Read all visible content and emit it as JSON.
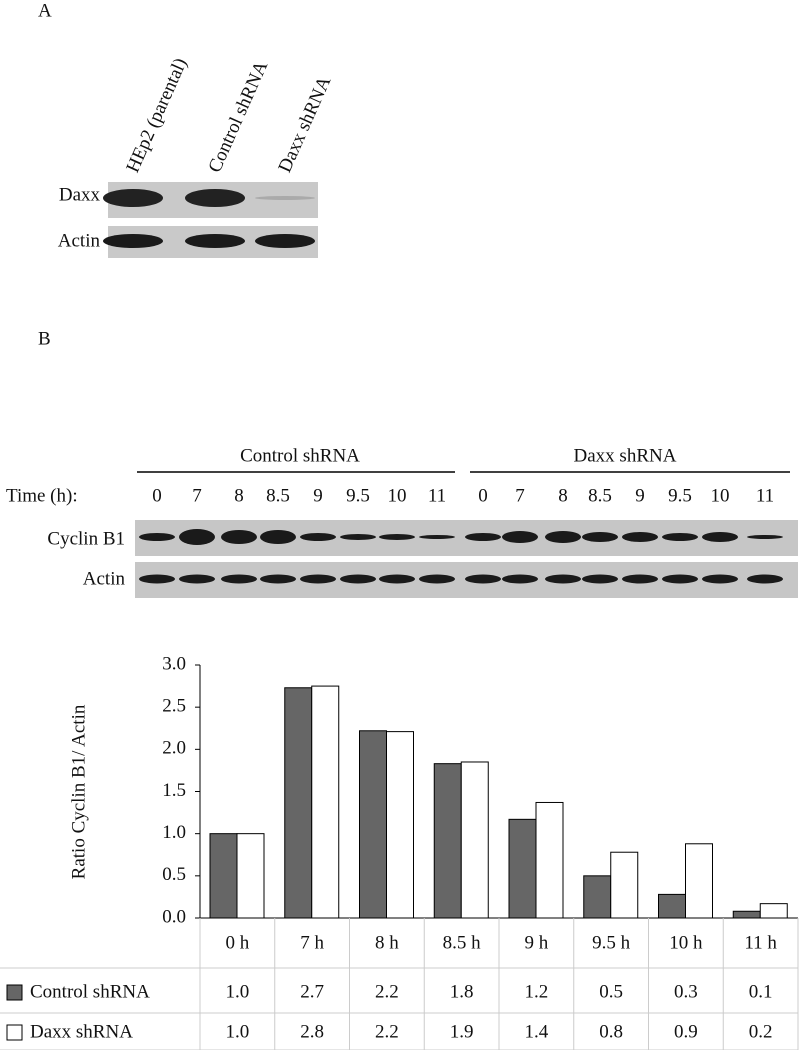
{
  "panel_a": {
    "label": "A",
    "lanes": [
      "HEp2 (parental)",
      "Control shRNA",
      "Daxx shRNA"
    ],
    "rows": [
      "Daxx",
      "Actin"
    ]
  },
  "panel_b": {
    "label": "B",
    "groups": [
      "Control shRNA",
      "Daxx shRNA"
    ],
    "time_label": "Time (h):",
    "times": [
      "0",
      "7",
      "8",
      "8.5",
      "9",
      "9.5",
      "10",
      "11"
    ],
    "rows": [
      "Cyclin B1",
      "Actin"
    ]
  },
  "chart_data": {
    "type": "bar",
    "y_label": "Ratio Cyclin B1/ Actin",
    "categories": [
      "0 h",
      "7 h",
      "8 h",
      "8.5 h",
      "9 h",
      "9.5 h",
      "10 h",
      "11 h"
    ],
    "series": [
      {
        "name": "Control shRNA",
        "color": "#666666",
        "values": [
          1.0,
          2.73,
          2.22,
          1.83,
          1.17,
          0.5,
          0.28,
          0.08
        ],
        "value_labels": [
          "1.0",
          "2.7",
          "2.2",
          "1.8",
          "1.2",
          "0.5",
          "0.3",
          "0.1"
        ]
      },
      {
        "name": "Daxx shRNA",
        "color": "#ffffff",
        "values": [
          1.0,
          2.75,
          2.21,
          1.85,
          1.37,
          0.78,
          0.88,
          0.17
        ],
        "value_labels": [
          "1.0",
          "2.8",
          "2.2",
          "1.9",
          "1.4",
          "0.8",
          "0.9",
          "0.2"
        ]
      }
    ],
    "ylim": [
      0,
      3
    ],
    "yticks": [
      {
        "value": 0,
        "label": "0.0"
      },
      {
        "value": 0.5,
        "label": "0.5"
      },
      {
        "value": 1,
        "label": "1.0"
      },
      {
        "value": 1.5,
        "label": "1.5"
      },
      {
        "value": 2,
        "label": "2.0"
      },
      {
        "value": 2.5,
        "label": "2.5"
      },
      {
        "value": 3,
        "label": "3.0"
      }
    ]
  }
}
